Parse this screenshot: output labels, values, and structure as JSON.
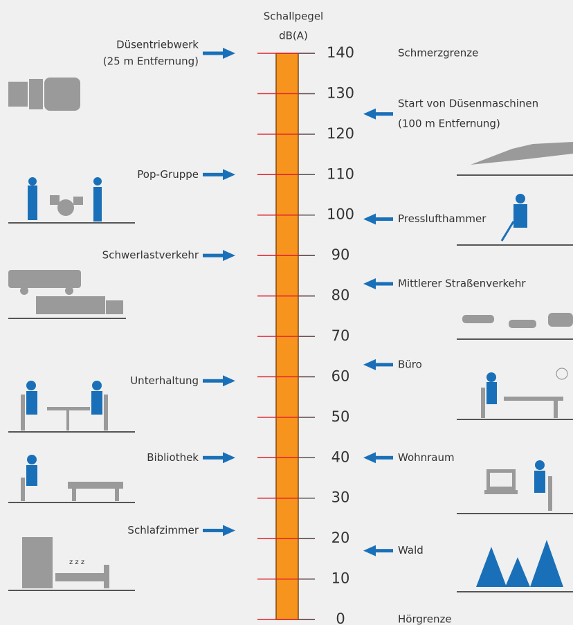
{
  "header": {
    "lines": [
      "Schallpegel",
      "dB(A)"
    ]
  },
  "scale": {
    "min": 0,
    "max": 140,
    "ticks": [
      0,
      10,
      20,
      30,
      40,
      50,
      60,
      70,
      80,
      90,
      100,
      110,
      120,
      130,
      140
    ]
  },
  "left": [
    {
      "lines": [
        "Düsentriebwerk",
        "(25 m Entfernung)"
      ],
      "level": 140
    },
    {
      "lines": [
        "Pop-Gruppe"
      ],
      "level": 110
    },
    {
      "lines": [
        "Schwerlastverkehr"
      ],
      "level": 90
    },
    {
      "lines": [
        "Unterhaltung"
      ],
      "level": 59
    },
    {
      "lines": [
        "Bibliothek"
      ],
      "level": 40
    },
    {
      "lines": [
        "Schlafzimmer"
      ],
      "level": 22
    }
  ],
  "right": [
    {
      "lines": [
        "Schmerzgrenze"
      ],
      "level": 140,
      "arrow": false
    },
    {
      "lines": [
        "Start von Düsenmaschinen",
        "(100 m Entfernung)"
      ],
      "level": 125,
      "arrow": true
    },
    {
      "lines": [
        "Presslufthammer"
      ],
      "level": 99,
      "arrow": true
    },
    {
      "lines": [
        "Mittlerer Straßenverkehr"
      ],
      "level": 83,
      "arrow": true
    },
    {
      "lines": [
        "Büro"
      ],
      "level": 63,
      "arrow": true
    },
    {
      "lines": [
        "Wohnraum"
      ],
      "level": 40,
      "arrow": true
    },
    {
      "lines": [
        "Wald"
      ],
      "level": 17,
      "arrow": true
    },
    {
      "lines": [
        "Hörgrenze"
      ],
      "level": 0,
      "arrow": false
    }
  ]
}
